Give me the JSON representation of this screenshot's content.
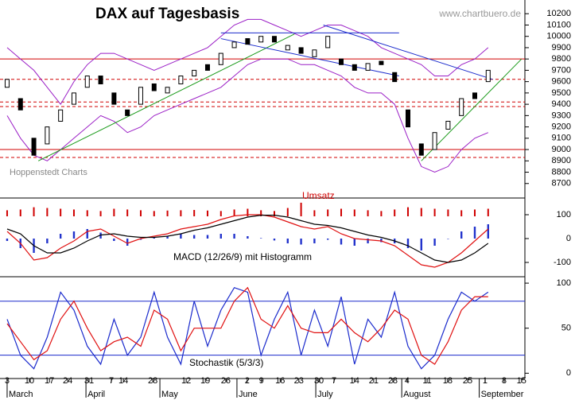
{
  "chart_data": [
    {
      "type": "candlestick",
      "title": "DAX auf Tagesbasis",
      "source": "www.chartbuero.de",
      "note": "Hoppenstedt Charts",
      "xlim": [
        -1.6,
        116.25
      ],
      "ylim": [
        8600,
        10300
      ],
      "yticks": [
        8700,
        8800,
        8900,
        9000,
        9100,
        9200,
        9300,
        9400,
        9500,
        9600,
        9700,
        9800,
        9900,
        10000,
        10100,
        10200
      ],
      "x": [
        0,
        3,
        6,
        9,
        12,
        15,
        18,
        21,
        24,
        27,
        30,
        33,
        36,
        39,
        42,
        45,
        48,
        51,
        54,
        57,
        60,
        63,
        66,
        69,
        72,
        75,
        78,
        81,
        84,
        87,
        90,
        93,
        96,
        99,
        102,
        105,
        108
      ],
      "open": [
        9550,
        9450,
        9100,
        9050,
        9250,
        9400,
        9550,
        9650,
        9500,
        9350,
        9400,
        9580,
        9500,
        9580,
        9650,
        9750,
        9750,
        9900,
        9980,
        9950,
        10000,
        9880,
        9900,
        9820,
        9900,
        9800,
        9750,
        9700,
        9780,
        9680,
        9350,
        9050,
        9000,
        9180,
        9300,
        9500,
        9600
      ],
      "close": [
        9620,
        9350,
        8950,
        9200,
        9350,
        9500,
        9650,
        9580,
        9400,
        9300,
        9550,
        9520,
        9550,
        9650,
        9700,
        9700,
        9850,
        9950,
        9930,
        10000,
        9950,
        9920,
        9850,
        9880,
        10000,
        9750,
        9700,
        9760,
        9750,
        9600,
        9200,
        8950,
        9150,
        9250,
        9450,
        9450,
        9700
      ],
      "bands": {
        "color": "#9b1fc6",
        "upper": [
          9900,
          9800,
          9700,
          9550,
          9400,
          9600,
          9750,
          9850,
          9850,
          9800,
          9750,
          9700,
          9750,
          9800,
          9850,
          9900,
          10000,
          10100,
          10150,
          10150,
          10100,
          10050,
          10000,
          10050,
          10100,
          10100,
          10050,
          10000,
          9900,
          9850,
          9800,
          9750,
          9650,
          9650,
          9750,
          9800,
          9900
        ],
        "lower": [
          9300,
          9100,
          8950,
          8900,
          9000,
          9100,
          9200,
          9300,
          9250,
          9150,
          9200,
          9300,
          9350,
          9400,
          9450,
          9500,
          9550,
          9650,
          9750,
          9800,
          9800,
          9800,
          9750,
          9750,
          9700,
          9650,
          9550,
          9500,
          9500,
          9400,
          9100,
          8850,
          8800,
          8850,
          9000,
          9100,
          9150
        ]
      },
      "hlines": [
        {
          "value": 9800,
          "color": "#d00000",
          "dashed": false
        },
        {
          "value": 9000,
          "color": "#d00000",
          "dashed": false
        },
        {
          "value": 9620,
          "color": "#d00000",
          "dashed": true
        },
        {
          "value": 9420,
          "color": "#d00000",
          "dashed": true
        },
        {
          "value": 9380,
          "color": "#d00000",
          "dashed": true
        },
        {
          "value": 8930,
          "color": "#d00000",
          "dashed": true
        }
      ],
      "trendlines": [
        {
          "x": [
            7,
            64.5
          ],
          "y": [
            8900,
            10020
          ],
          "color": "#1a9a1a"
        },
        {
          "x": [
            93,
            115.5
          ],
          "y": [
            8900,
            9800
          ],
          "color": "#1a9a1a"
        },
        {
          "x": [
            71,
            109
          ],
          "y": [
            10100,
            9620
          ],
          "color": "#1a2acc"
        },
        {
          "x": [
            48,
            88
          ],
          "y": [
            9980,
            9650
          ],
          "color": "#1a2acc"
        },
        {
          "x": [
            48,
            88
          ],
          "y": [
            10030,
            10030
          ],
          "color": "#1a2acc"
        }
      ]
    },
    {
      "type": "bar",
      "title": "Umsatz",
      "color": "#d00000",
      "ylim": [
        0,
        100
      ],
      "x": [
        0,
        3,
        6,
        9,
        12,
        15,
        18,
        21,
        24,
        27,
        30,
        33,
        36,
        39,
        42,
        45,
        48,
        51,
        54,
        57,
        60,
        63,
        66,
        69,
        72,
        75,
        78,
        81,
        84,
        87,
        90,
        93,
        96,
        99,
        102,
        105,
        108
      ],
      "values": [
        40,
        45,
        60,
        55,
        50,
        45,
        40,
        35,
        50,
        45,
        40,
        35,
        38,
        40,
        42,
        38,
        35,
        45,
        50,
        40,
        35,
        55,
        90,
        40,
        45,
        50,
        45,
        40,
        35,
        45,
        60,
        55,
        50,
        45,
        40,
        45,
        50
      ]
    },
    {
      "type": "line",
      "title": "MACD (12/26/9) mit Histogramm",
      "ylim": [
        -150,
        150
      ],
      "yticks": [
        100,
        0,
        -100
      ],
      "x": [
        0,
        3,
        6,
        9,
        12,
        15,
        18,
        21,
        24,
        27,
        30,
        33,
        36,
        39,
        42,
        45,
        48,
        51,
        54,
        57,
        60,
        63,
        66,
        69,
        72,
        75,
        78,
        81,
        84,
        87,
        90,
        93,
        96,
        99,
        102,
        105,
        108
      ],
      "series": [
        {
          "kind": "bar",
          "color": "#2233cc",
          "values": [
            -10,
            -40,
            -60,
            -20,
            20,
            30,
            40,
            25,
            -10,
            -30,
            -5,
            5,
            10,
            20,
            15,
            15,
            20,
            20,
            10,
            2,
            -8,
            -20,
            -25,
            -20,
            -5,
            -25,
            -30,
            -20,
            -15,
            -20,
            -40,
            -50,
            -30,
            0,
            30,
            50,
            60
          ]
        },
        {
          "kind": "line",
          "color": "#e01010",
          "values": [
            30,
            -20,
            -90,
            -80,
            -40,
            -10,
            30,
            40,
            10,
            -20,
            0,
            10,
            20,
            40,
            50,
            60,
            80,
            95,
            100,
            100,
            90,
            70,
            50,
            40,
            50,
            20,
            0,
            -5,
            -10,
            -30,
            -70,
            -110,
            -120,
            -100,
            -60,
            -10,
            40
          ]
        },
        {
          "kind": "line",
          "color": "#000000",
          "values": [
            40,
            20,
            -30,
            -60,
            -60,
            -40,
            -10,
            15,
            20,
            10,
            5,
            5,
            10,
            20,
            35,
            45,
            60,
            75,
            90,
            98,
            98,
            90,
            75,
            60,
            55,
            45,
            30,
            15,
            5,
            -10,
            -30,
            -60,
            -90,
            -100,
            -90,
            -60,
            -20
          ]
        }
      ]
    },
    {
      "type": "line",
      "title": "Stochastik (5/3/3)",
      "ylim": [
        -5,
        108
      ],
      "yticks": [
        100,
        50,
        0
      ],
      "hlines": [
        {
          "value": 80,
          "color": "#1a2acc",
          "dashed": false
        },
        {
          "value": 20,
          "color": "#1a2acc",
          "dashed": false
        }
      ],
      "x": [
        0,
        3,
        6,
        9,
        12,
        15,
        18,
        21,
        24,
        27,
        30,
        33,
        36,
        39,
        42,
        45,
        48,
        51,
        54,
        57,
        60,
        63,
        66,
        69,
        72,
        75,
        78,
        81,
        84,
        87,
        90,
        93,
        96,
        99,
        102,
        105,
        108
      ],
      "series": [
        {
          "kind": "line",
          "color": "#1a2acc",
          "values": [
            60,
            20,
            5,
            40,
            90,
            70,
            30,
            10,
            60,
            20,
            40,
            90,
            40,
            10,
            80,
            30,
            70,
            95,
            90,
            20,
            60,
            90,
            20,
            70,
            30,
            85,
            10,
            60,
            40,
            90,
            30,
            5,
            20,
            60,
            90,
            80,
            90
          ]
        },
        {
          "kind": "line",
          "color": "#e01010",
          "values": [
            55,
            35,
            15,
            25,
            60,
            80,
            50,
            25,
            35,
            40,
            30,
            70,
            60,
            25,
            50,
            50,
            50,
            80,
            95,
            60,
            50,
            75,
            50,
            45,
            45,
            60,
            45,
            35,
            50,
            70,
            60,
            20,
            10,
            35,
            70,
            85,
            85
          ]
        }
      ],
      "xlim": [
        -1.6,
        116.25
      ],
      "xticks": [
        {
          "value": 0,
          "label": "3"
        },
        {
          "value": 5,
          "label": "10"
        },
        {
          "value": 9.5,
          "label": "17"
        },
        {
          "value": 13.6,
          "label": "24"
        },
        {
          "value": 18.4,
          "label": "31"
        },
        {
          "value": 23.4,
          "label": "7"
        },
        {
          "value": 26.1,
          "label": "14"
        },
        {
          "value": 32.7,
          "label": "28"
        },
        {
          "value": 40.2,
          "label": "12"
        },
        {
          "value": 44.5,
          "label": "19"
        },
        {
          "value": 49.1,
          "label": "26"
        },
        {
          "value": 53.9,
          "label": "2"
        },
        {
          "value": 57.1,
          "label": "9"
        },
        {
          "value": 61.3,
          "label": "16"
        },
        {
          "value": 65.5,
          "label": "23"
        },
        {
          "value": 70,
          "label": "30"
        },
        {
          "value": 73.4,
          "label": "7"
        },
        {
          "value": 78,
          "label": "14"
        },
        {
          "value": 82.3,
          "label": "21"
        },
        {
          "value": 86.6,
          "label": "28"
        },
        {
          "value": 89.8,
          "label": "4"
        },
        {
          "value": 94.3,
          "label": "11"
        },
        {
          "value": 98.9,
          "label": "18"
        },
        {
          "value": 103.4,
          "label": "25"
        },
        {
          "value": 107.3,
          "label": "1"
        },
        {
          "value": 111.6,
          "label": "8"
        },
        {
          "value": 115.5,
          "label": "15"
        }
      ],
      "months": [
        {
          "value": 0,
          "label": "March"
        },
        {
          "value": 17.7,
          "label": "April"
        },
        {
          "value": 34.3,
          "label": "May"
        },
        {
          "value": 51.6,
          "label": "June"
        },
        {
          "value": 69.3,
          "label": "July"
        },
        {
          "value": 88.6,
          "label": "August"
        },
        {
          "value": 106,
          "label": "September"
        }
      ]
    }
  ]
}
